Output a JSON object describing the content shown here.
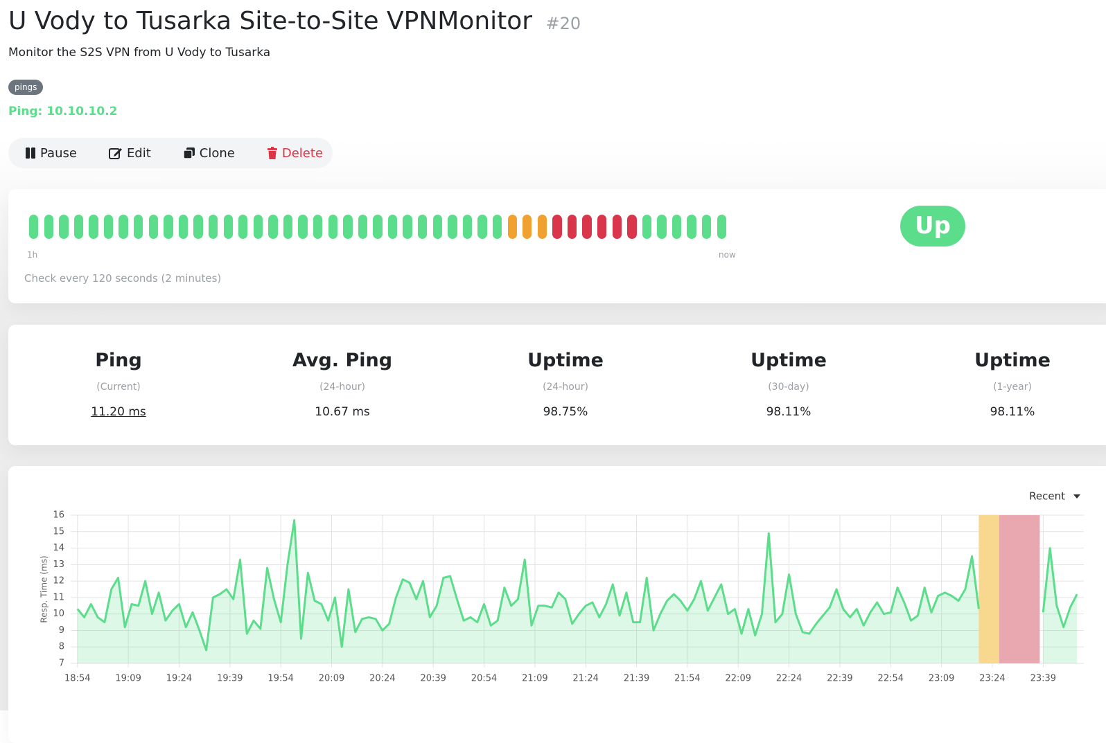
{
  "header": {
    "title": "U Vody to Tusarka Site-to-Site VPNMonitor",
    "id": "#20",
    "description": "Monitor the S2S VPN from U Vody to Tusarka",
    "tag": "pings",
    "url": "Ping: 10.10.10.2"
  },
  "actions": [
    "Pause",
    "Edit",
    "Clone",
    "Delete"
  ],
  "heartbeat": {
    "beats": [
      "up",
      "up",
      "up",
      "up",
      "up",
      "up",
      "up",
      "up",
      "up",
      "up",
      "up",
      "up",
      "up",
      "up",
      "up",
      "up",
      "up",
      "up",
      "up",
      "up",
      "up",
      "up",
      "up",
      "up",
      "up",
      "up",
      "up",
      "up",
      "up",
      "up",
      "up",
      "up",
      "pending",
      "pending",
      "pending",
      "down",
      "down",
      "down",
      "down",
      "down",
      "down",
      "up",
      "up",
      "up",
      "up",
      "up",
      "up"
    ],
    "colors": {
      "up": "#5cdd8b",
      "pending": "#f0a130",
      "down": "#d9364b"
    },
    "start_label": "1h",
    "end_label": "now",
    "status": "Up",
    "interval_text": "Check every 120 seconds (2 minutes)"
  },
  "stats": [
    {
      "title": "Ping",
      "period": "(Current)",
      "value": "11.20 ms"
    },
    {
      "title": "Avg. Ping",
      "period": "(24-hour)",
      "value": "10.67 ms"
    },
    {
      "title": "Uptime",
      "period": "(24-hour)",
      "value": "98.75%"
    },
    {
      "title": "Uptime",
      "period": "(30-day)",
      "value": "98.11%"
    },
    {
      "title": "Uptime",
      "period": "(1-year)",
      "value": "98.11%"
    }
  ],
  "chart_data": {
    "type": "line",
    "period_label": "Recent",
    "y_label": "Resp. Time (ms)",
    "x": [
      "18:54",
      "18:56",
      "18:58",
      "19:00",
      "19:02",
      "19:04",
      "19:06",
      "19:08",
      "19:10",
      "19:12",
      "19:14",
      "19:16",
      "19:18",
      "19:20",
      "19:22",
      "19:24",
      "19:26",
      "19:28",
      "19:30",
      "19:32",
      "19:34",
      "19:36",
      "19:38",
      "19:40",
      "19:42",
      "19:44",
      "19:46",
      "19:48",
      "19:50",
      "19:52",
      "19:54",
      "19:56",
      "19:58",
      "20:00",
      "20:02",
      "20:04",
      "20:06",
      "20:08",
      "20:10",
      "20:12",
      "20:14",
      "20:16",
      "20:18",
      "20:20",
      "20:22",
      "20:24",
      "20:26",
      "20:28",
      "20:30",
      "20:32",
      "20:34",
      "20:36",
      "20:38",
      "20:40",
      "20:42",
      "20:44",
      "20:46",
      "20:48",
      "20:50",
      "20:52",
      "20:54",
      "20:56",
      "20:58",
      "21:00",
      "21:02",
      "21:04",
      "21:06",
      "21:08",
      "21:10",
      "21:12",
      "21:14",
      "21:16",
      "21:18",
      "21:20",
      "21:22",
      "21:24",
      "21:26",
      "21:28",
      "21:30",
      "21:32",
      "21:34",
      "21:36",
      "21:38",
      "21:40",
      "21:42",
      "21:44",
      "21:46",
      "21:48",
      "21:50",
      "21:52",
      "21:54",
      "21:56",
      "21:58",
      "22:00",
      "22:02",
      "22:04",
      "22:06",
      "22:08",
      "22:10",
      "22:12",
      "22:14",
      "22:16",
      "22:18",
      "22:20",
      "22:22",
      "22:24",
      "22:26",
      "22:28",
      "22:30",
      "22:32",
      "22:34",
      "22:36",
      "22:38",
      "22:40",
      "22:42",
      "22:44",
      "22:46",
      "22:48",
      "22:50",
      "22:52",
      "22:54",
      "22:56",
      "22:58",
      "23:00",
      "23:02",
      "23:04",
      "23:06",
      "23:08",
      "23:10",
      "23:12",
      "23:14",
      "23:16",
      "23:18",
      "23:20",
      "23:30",
      "23:39",
      "23:41",
      "23:43",
      "23:45",
      "23:47",
      "23:49"
    ],
    "series": [
      {
        "color": "#5cdd8b",
        "values": [
          10.3,
          9.8,
          10.6,
          9.8,
          9.5,
          11.5,
          12.2,
          9.2,
          10.6,
          10.5,
          12.0,
          10.0,
          11.3,
          9.6,
          10.2,
          10.6,
          9.2,
          10.1,
          9.0,
          7.8,
          11.0,
          11.2,
          11.5,
          10.9,
          13.3,
          8.8,
          9.6,
          9.1,
          12.8,
          10.9,
          9.5,
          13.0,
          15.7,
          8.5,
          12.5,
          10.8,
          10.6,
          9.6,
          11.0,
          8.0,
          11.5,
          8.9,
          9.7,
          9.8,
          9.7,
          9.0,
          9.4,
          11.0,
          12.1,
          11.9,
          10.9,
          12.0,
          9.8,
          10.5,
          12.2,
          12.3,
          10.9,
          9.6,
          9.8,
          9.5,
          10.6,
          9.3,
          9.6,
          11.6,
          10.5,
          10.9,
          13.3,
          9.3,
          10.5,
          10.5,
          10.4,
          11.3,
          10.9,
          9.4,
          10.0,
          10.5,
          10.7,
          9.8,
          10.6,
          11.8,
          9.9,
          11.3,
          9.5,
          9.5,
          12.2,
          9.0,
          10.0,
          10.8,
          11.2,
          10.8,
          10.2,
          10.9,
          12.0,
          10.2,
          11.0,
          11.8,
          10.0,
          10.3,
          8.8,
          10.3,
          8.7,
          10.0,
          14.9,
          9.5,
          10.0,
          12.4,
          10.0,
          8.9,
          8.8,
          9.4,
          9.9,
          10.4,
          11.5,
          10.3,
          9.8,
          10.3,
          9.3,
          10.1,
          10.7,
          10.0,
          10.1,
          11.6,
          10.7,
          9.6,
          9.9,
          11.6,
          10.1,
          11.1,
          11.3,
          11.1,
          10.8,
          11.5,
          13.5,
          10.3,
          null,
          10.1,
          14.0,
          10.5,
          9.2,
          10.4,
          11.2
        ]
      }
    ],
    "bands": [
      {
        "from": "23:20",
        "to": "23:26",
        "color": "#f8d78f"
      },
      {
        "from": "23:26",
        "to": "23:38",
        "color": "#e9a7b0"
      }
    ],
    "xlim": [
      "18:52",
      "23:51"
    ],
    "xticks": [
      "18:54",
      "19:09",
      "19:24",
      "19:39",
      "19:54",
      "20:09",
      "20:24",
      "20:39",
      "20:54",
      "21:09",
      "21:24",
      "21:39",
      "21:54",
      "22:09",
      "22:24",
      "22:39",
      "22:54",
      "23:09",
      "23:24",
      "23:39"
    ],
    "ylim": [
      7,
      16
    ],
    "yticks": [
      7,
      8,
      9,
      10,
      11,
      12,
      13,
      14,
      15,
      16
    ],
    "grid": true
  }
}
